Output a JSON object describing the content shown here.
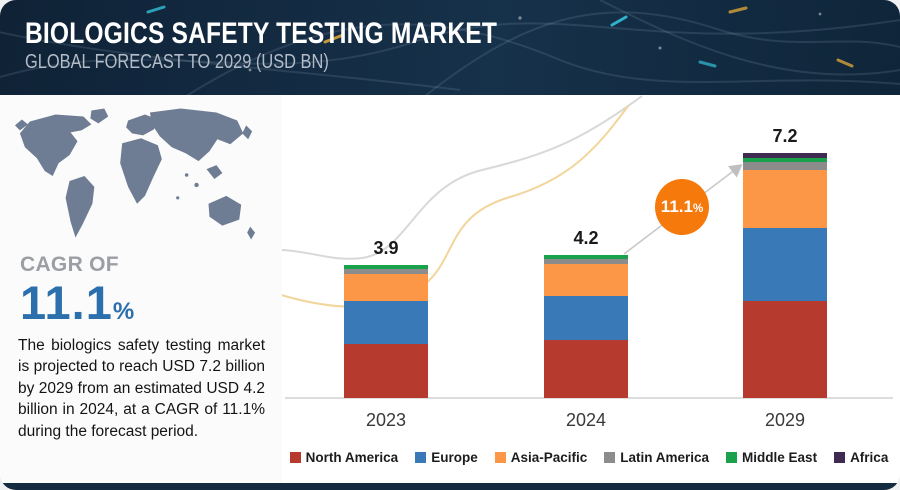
{
  "header": {
    "title": "BIOLOGICS SAFETY TESTING MARKET",
    "subtitle": "GLOBAL FORECAST TO 2029 (USD BN)"
  },
  "left_panel": {
    "cagr_label": "CAGR OF",
    "cagr_value": "11.1",
    "cagr_percent_sign": "%",
    "description": "The biologics safety testing market is projected to reach USD 7.2 billion by 2029 from an estimated USD 4.2 billion in 2024, at a CAGR of 11.1% during the forecast period."
  },
  "chart_data": {
    "type": "bar",
    "stacked": true,
    "title": "Biologics Safety Testing Market, Global Forecast to 2029 (USD BN)",
    "categories": [
      "2023",
      "2024",
      "2029"
    ],
    "totals": [
      3.9,
      4.2,
      7.2
    ],
    "total_labels": [
      "3.9",
      "4.2",
      "7.2"
    ],
    "units": "USD BN",
    "grid": false,
    "legend_position": "bottom",
    "series": [
      {
        "name": "North America",
        "color": "#b63a2d",
        "values": [
          1.6,
          1.7,
          2.85
        ]
      },
      {
        "name": "Europe",
        "color": "#3a79b8",
        "values": [
          1.25,
          1.3,
          2.15
        ]
      },
      {
        "name": "Asia-Pacific",
        "color": "#fb9747",
        "values": [
          0.8,
          0.95,
          1.7
        ]
      },
      {
        "name": "Latin America",
        "color": "#8c8c8c",
        "values": [
          0.15,
          0.15,
          0.25
        ]
      },
      {
        "name": "Middle East",
        "color": "#19a24b",
        "values": [
          0.1,
          0.1,
          0.1
        ]
      },
      {
        "name": "Africa",
        "color": "#3f2b52",
        "values": [
          0.0,
          0.0,
          0.15
        ]
      }
    ],
    "growth_badge": {
      "value": "11.1",
      "suffix": "%",
      "color": "#f6790b"
    }
  },
  "colors": {
    "header_bg": "#14293f",
    "cagr_blue": "#2c6fad",
    "badge_orange": "#f6790b",
    "axis_gray": "#dcdddf"
  }
}
